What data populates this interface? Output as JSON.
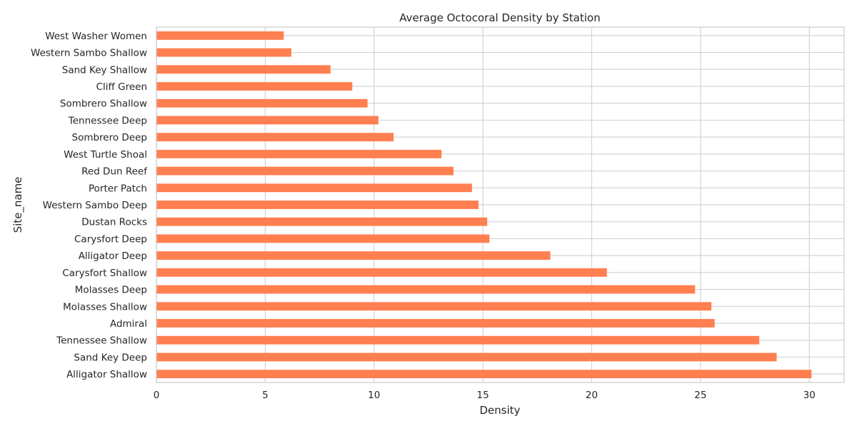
{
  "chart_data": {
    "type": "bar",
    "orientation": "horizontal",
    "title": "Average Octocoral Density by Station",
    "xlabel": "Density",
    "ylabel": "Site_name",
    "xlim": [
      0,
      31.6
    ],
    "xticks": [
      0,
      5,
      10,
      15,
      20,
      25,
      30
    ],
    "grid": true,
    "categories": [
      "Alligator Shallow",
      "Sand Key Deep",
      "Tennessee Shallow",
      "Admiral",
      "Molasses Shallow",
      "Molasses Deep",
      "Carysfort Shallow",
      "Alligator Deep",
      "Carysfort Deep",
      "Dustan Rocks",
      "Western Sambo Deep",
      "Porter Patch",
      "Red Dun Reef",
      "West Turtle Shoal",
      "Sombrero Deep",
      "Tennessee Deep",
      "Sombrero Shallow",
      "Cliff Green",
      "Sand Key Shallow",
      "Western Sambo Shallow",
      "West Washer Women"
    ],
    "values": [
      30.1,
      28.5,
      27.7,
      25.65,
      25.5,
      24.75,
      20.7,
      18.1,
      15.3,
      15.2,
      14.8,
      14.5,
      13.65,
      13.1,
      10.9,
      10.2,
      9.7,
      9.0,
      8.0,
      6.2,
      5.85
    ],
    "bar_color": "#ff7f50"
  }
}
